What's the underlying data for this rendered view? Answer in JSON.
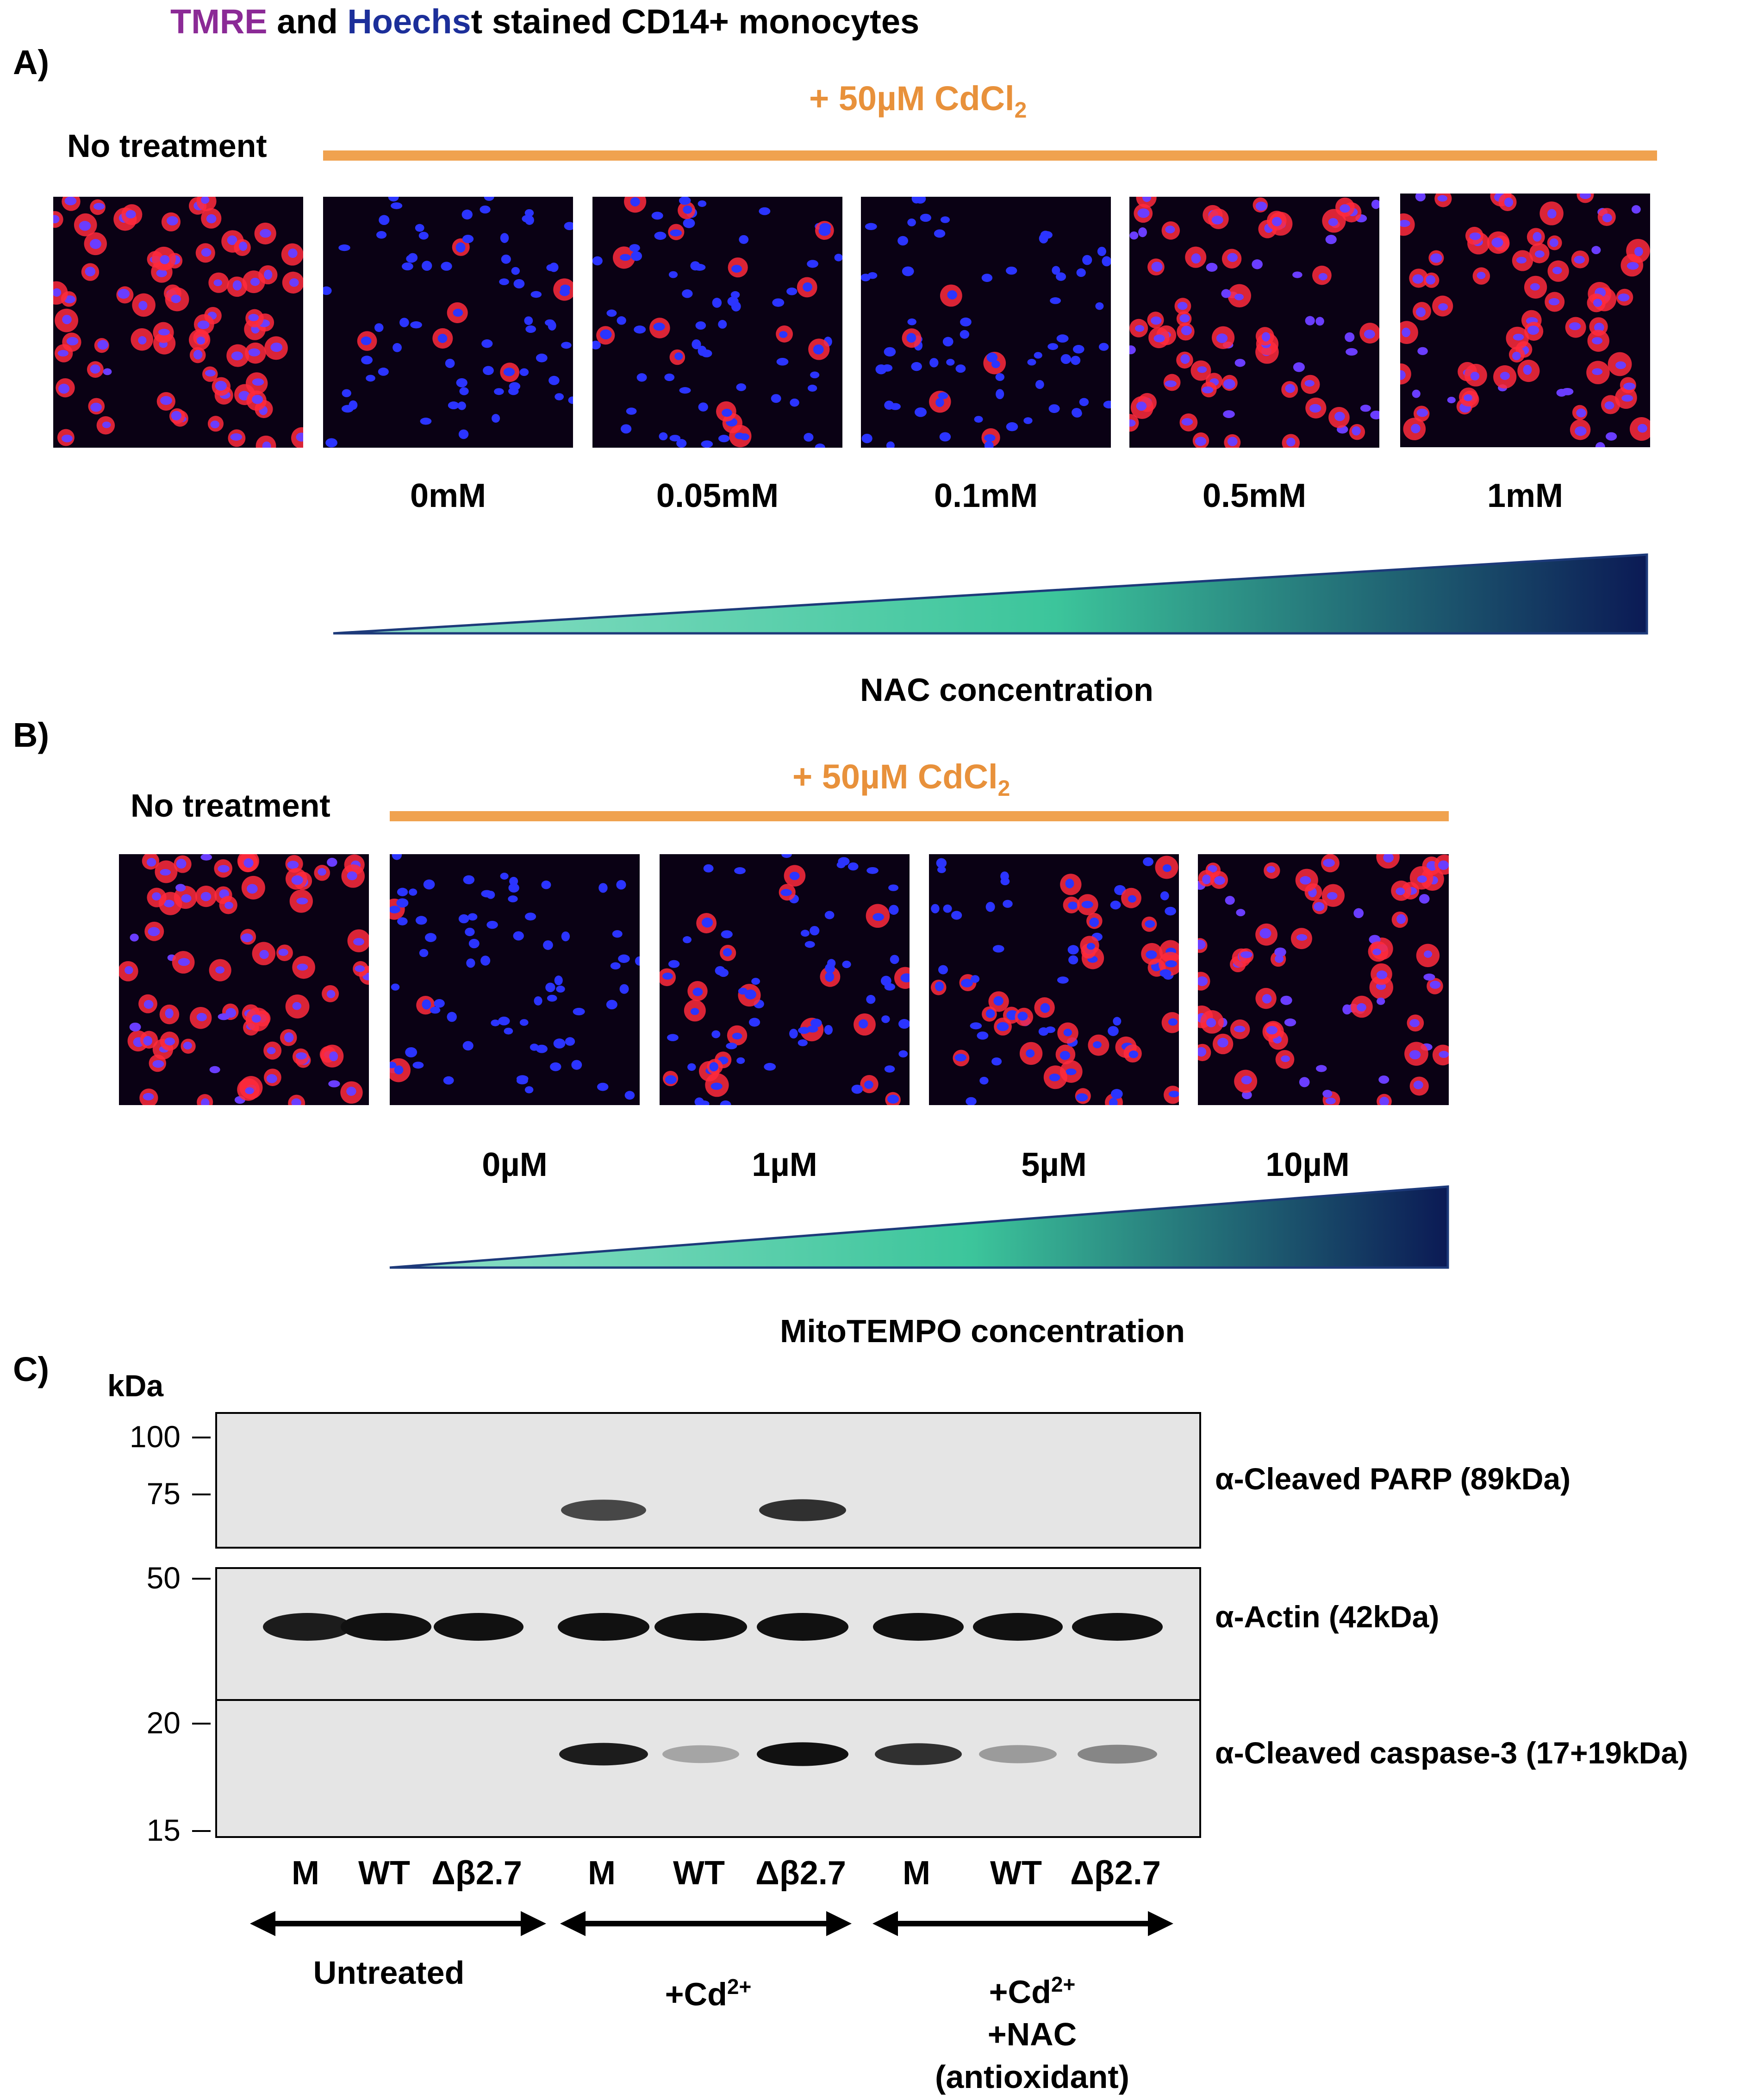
{
  "figure": {
    "title": {
      "tmre": "TMRE",
      "and": " and ",
      "hoechst": "Hoechs",
      "rest": "t stained CD14+ monocytes"
    },
    "colors": {
      "tmre": "#8b2a96",
      "hoechst": "#1c2f9a",
      "orange": "#e8913b",
      "triangle_start": "#48c8a0",
      "triangle_end": "#0b1a55"
    },
    "panel_a": {
      "label": "A)",
      "treatment": "+ 50µM CdCl",
      "treatment_sub": "2",
      "control_label": "No treatment",
      "concentrations": [
        "0mM",
        "0.05mM",
        "0.1mM",
        "0.5mM",
        "1mM"
      ],
      "gradient_label": "NAC concentration",
      "red_density": [
        0.95,
        0.08,
        0.15,
        0.2,
        0.7,
        0.8
      ]
    },
    "panel_b": {
      "label": "B)",
      "treatment": "+ 50µM CdCl",
      "treatment_sub": "2",
      "control_label": "No treatment",
      "concentrations": [
        "0µM",
        "1µM",
        "5µM",
        "10µM"
      ],
      "gradient_label": "MitoTEMPO concentration",
      "red_density": [
        0.9,
        0.05,
        0.25,
        0.45,
        0.6
      ]
    },
    "panel_c": {
      "label": "C)",
      "unit": "kDa",
      "blots": [
        {
          "name": "α-Cleaved PARP (89kDa)",
          "markers": [
            "100",
            "75"
          ],
          "bands": [
            0,
            0,
            0,
            0.6,
            0,
            0.7,
            0,
            0,
            0
          ]
        },
        {
          "name": "α-Actin (42kDa)",
          "markers": [
            "50"
          ],
          "bands": [
            0.8,
            0.9,
            0.85,
            0.95,
            1,
            0.95,
            0.9,
            0.85,
            0.9
          ]
        },
        {
          "name": "α-Cleaved caspase-3 (17+19kDa)",
          "markers": [
            "20",
            "15"
          ],
          "bands": [
            0,
            0,
            0,
            0.8,
            0.15,
            0.95,
            0.7,
            0.2,
            0.3
          ]
        }
      ],
      "lanes": [
        "M",
        "WT",
        "Δβ2.7",
        "M",
        "WT",
        "Δβ2.7",
        "M",
        "WT",
        "Δβ2.7"
      ],
      "groups": [
        {
          "line1": "Untreated",
          "line2": "",
          "line3": "",
          "line4": ""
        },
        {
          "line1": "+Cd",
          "sup": "2+",
          "line3": "",
          "line4": ""
        },
        {
          "line1": "+Cd",
          "sup": "2+",
          "line3": "+NAC",
          "line4": "(antioxidant)"
        }
      ]
    }
  }
}
